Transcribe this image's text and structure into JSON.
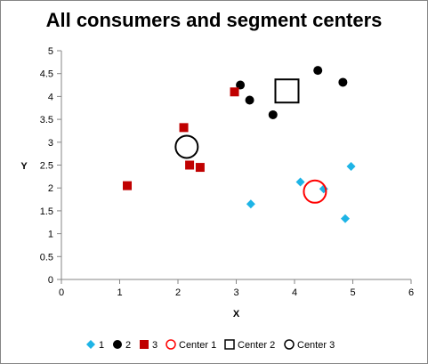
{
  "chart_data": {
    "type": "scatter",
    "title": "All consumers and segment centers",
    "xlabel": "X",
    "ylabel": "Y",
    "xlim": [
      0,
      6
    ],
    "ylim": [
      0,
      5
    ],
    "xticks": [
      "0",
      "1",
      "2",
      "3",
      "4",
      "5",
      "6"
    ],
    "yticks": [
      "0",
      "0.5",
      "1",
      "1.5",
      "2",
      "2.5",
      "3",
      "3.5",
      "4",
      "4.5",
      "5"
    ],
    "grid": false,
    "legend": "bottom",
    "series": [
      {
        "name": "1",
        "marker": "diamond",
        "color": "#1EB4E6",
        "points": [
          [
            3.25,
            1.65
          ],
          [
            4.1,
            2.13
          ],
          [
            4.5,
            1.98
          ],
          [
            4.97,
            2.47
          ],
          [
            4.87,
            1.33
          ]
        ]
      },
      {
        "name": "2",
        "marker": "circle",
        "color": "#000000",
        "points": [
          [
            3.07,
            4.25
          ],
          [
            3.23,
            3.92
          ],
          [
            3.63,
            3.6
          ],
          [
            4.4,
            4.57
          ],
          [
            4.83,
            4.31
          ]
        ]
      },
      {
        "name": "3",
        "marker": "square",
        "color": "#C00000",
        "points": [
          [
            1.13,
            2.05
          ],
          [
            2.1,
            3.32
          ],
          [
            2.2,
            2.5
          ],
          [
            2.38,
            2.45
          ],
          [
            2.97,
            4.1
          ]
        ]
      },
      {
        "name": "Center 1",
        "marker": "open-circle",
        "color": "#FF0000",
        "points": [
          [
            4.35,
            1.92
          ]
        ]
      },
      {
        "name": "Center 2",
        "marker": "open-square",
        "color": "#000000",
        "points": [
          [
            3.87,
            4.12
          ]
        ]
      },
      {
        "name": "Center 3",
        "marker": "open-circle",
        "color": "#000000",
        "points": [
          [
            2.15,
            2.9
          ]
        ]
      }
    ]
  }
}
